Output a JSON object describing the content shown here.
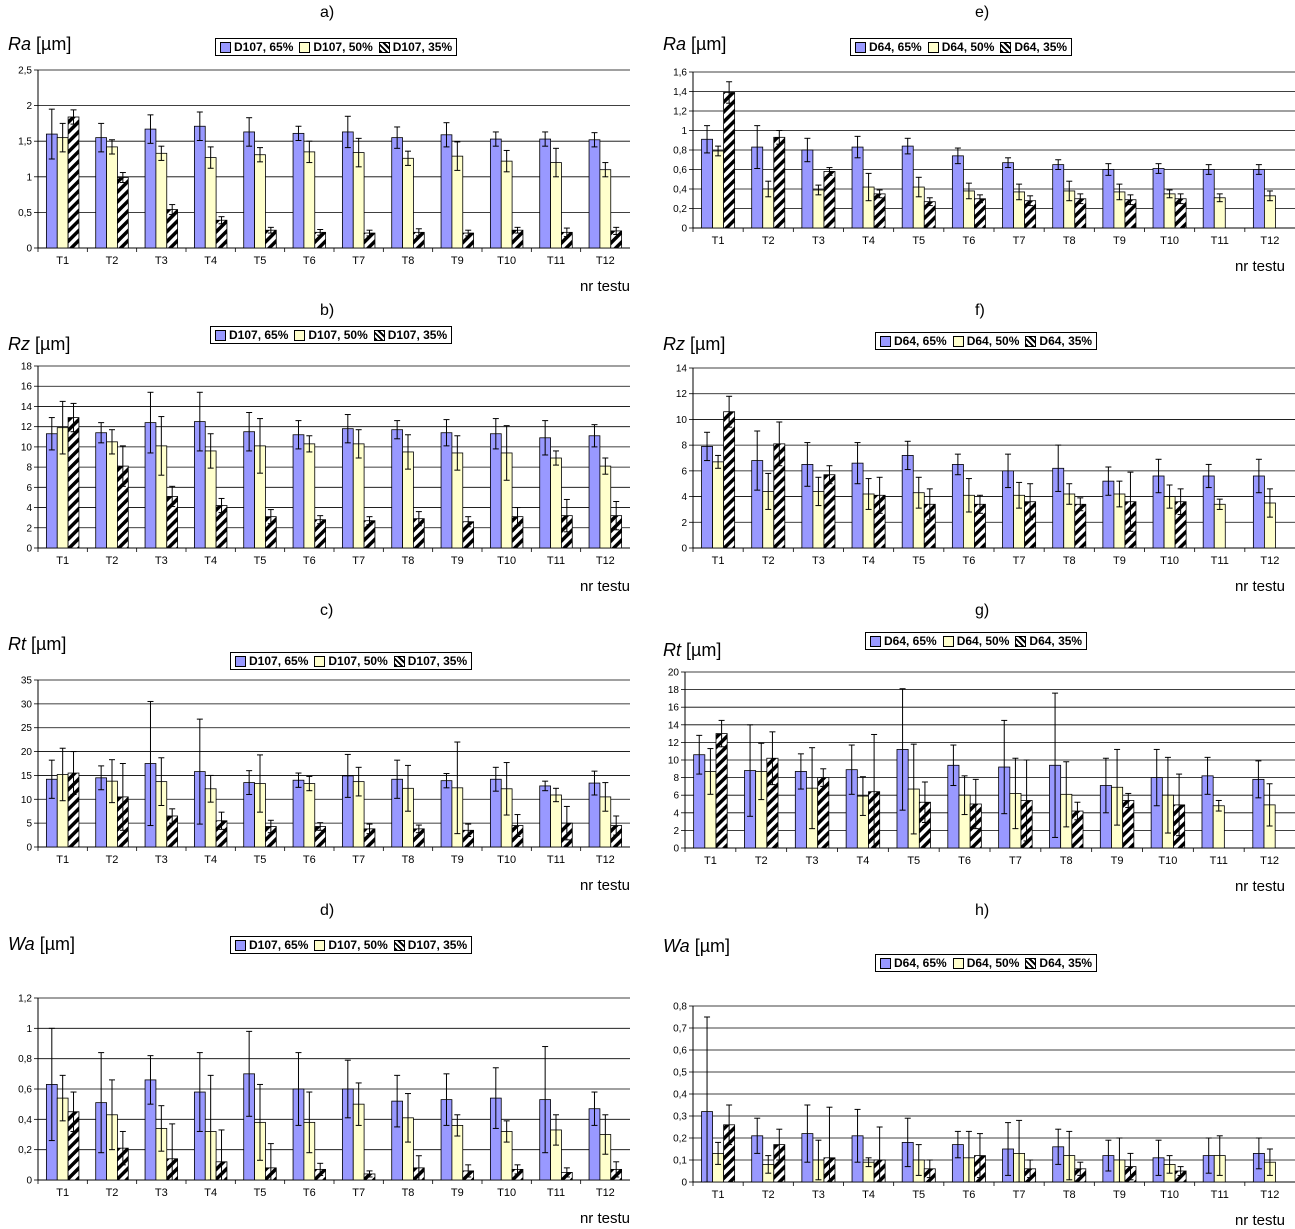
{
  "x_axis_label": "nr testu",
  "categories": [
    "T1",
    "T2",
    "T3",
    "T4",
    "T5",
    "T6",
    "T7",
    "T8",
    "T9",
    "T10",
    "T11",
    "T12"
  ],
  "colors": {
    "s65": "#9999ff",
    "s50": "#ffffcc",
    "s35": "#ffffff",
    "stroke": "#000000"
  },
  "chart_data": [
    {
      "id": "a",
      "type": "bar",
      "title": "a)",
      "ylabel": "Ra",
      "unit": "[µm]",
      "ylim": [
        0,
        2.5
      ],
      "ystep": 0.5,
      "series": [
        {
          "name": "D107, 65%",
          "values": [
            1.6,
            1.55,
            1.67,
            1.71,
            1.63,
            1.61,
            1.63,
            1.55,
            1.59,
            1.53,
            1.53,
            1.52
          ],
          "err": [
            0.35,
            0.2,
            0.2,
            0.2,
            0.2,
            0.1,
            0.22,
            0.15,
            0.17,
            0.1,
            0.1,
            0.1
          ]
        },
        {
          "name": "D107, 50%",
          "values": [
            1.55,
            1.42,
            1.33,
            1.27,
            1.31,
            1.35,
            1.34,
            1.26,
            1.29,
            1.22,
            1.2,
            1.1
          ],
          "err": [
            0.2,
            0.1,
            0.1,
            0.15,
            0.1,
            0.15,
            0.2,
            0.1,
            0.2,
            0.15,
            0.2,
            0.1
          ]
        },
        {
          "name": "D107, 35%",
          "values": [
            1.84,
            0.99,
            0.54,
            0.39,
            0.25,
            0.22,
            0.21,
            0.22,
            0.21,
            0.25,
            0.22,
            0.24
          ],
          "err": [
            0.1,
            0.07,
            0.07,
            0.05,
            0.04,
            0.04,
            0.04,
            0.05,
            0.04,
            0.04,
            0.06,
            0.05
          ]
        }
      ]
    },
    {
      "id": "e",
      "type": "bar",
      "title": "e)",
      "ylabel": "Ra",
      "unit": "[µm]",
      "ylim": [
        0,
        1.6
      ],
      "ystep": 0.2,
      "series": [
        {
          "name": "D64, 65%",
          "values": [
            0.91,
            0.83,
            0.8,
            0.83,
            0.84,
            0.74,
            0.67,
            0.65,
            0.6,
            0.61,
            0.6,
            0.6
          ],
          "err": [
            0.14,
            0.22,
            0.12,
            0.11,
            0.08,
            0.08,
            0.05,
            0.05,
            0.06,
            0.05,
            0.05,
            0.05
          ]
        },
        {
          "name": "D64, 50%",
          "values": [
            0.79,
            0.4,
            0.39,
            0.42,
            0.42,
            0.38,
            0.37,
            0.38,
            0.37,
            0.35,
            0.31,
            0.33
          ],
          "err": [
            0.05,
            0.08,
            0.05,
            0.14,
            0.1,
            0.08,
            0.08,
            0.1,
            0.08,
            0.04,
            0.04,
            0.05
          ]
        },
        {
          "name": "D64, 35%",
          "values": [
            1.39,
            0.93,
            0.58,
            0.35,
            0.27,
            0.3,
            0.28,
            0.3,
            0.29,
            0.3,
            0.0,
            0.0
          ],
          "err": [
            0.11,
            0.07,
            0.04,
            0.04,
            0.04,
            0.04,
            0.05,
            0.05,
            0.05,
            0.05,
            0.0,
            0.0
          ]
        }
      ]
    },
    {
      "id": "b",
      "type": "bar",
      "title": "b)",
      "ylabel": "Rz",
      "unit": "[µm]",
      "ylim": [
        0,
        18
      ],
      "ystep": 2,
      "series": [
        {
          "name": "D107, 65%",
          "values": [
            11.3,
            11.4,
            12.4,
            12.5,
            11.5,
            11.2,
            11.8,
            11.7,
            11.4,
            11.3,
            10.9,
            11.1
          ],
          "err": [
            1.6,
            1.0,
            3.0,
            2.9,
            1.9,
            1.4,
            1.4,
            0.9,
            1.3,
            1.5,
            1.7,
            1.1
          ]
        },
        {
          "name": "D107, 50%",
          "values": [
            11.9,
            10.5,
            10.1,
            9.6,
            10.1,
            10.3,
            10.3,
            9.5,
            9.4,
            9.4,
            8.9,
            8.1
          ],
          "err": [
            2.6,
            1.2,
            2.9,
            1.7,
            2.7,
            0.8,
            1.4,
            1.7,
            1.7,
            2.7,
            0.7,
            0.8
          ]
        },
        {
          "name": "D107, 35%",
          "values": [
            12.9,
            8.1,
            5.1,
            4.2,
            3.1,
            2.8,
            2.7,
            2.9,
            2.6,
            3.1,
            3.2,
            3.2
          ],
          "err": [
            1.4,
            2.0,
            1.0,
            0.7,
            0.7,
            0.4,
            0.4,
            0.7,
            0.5,
            0.9,
            1.6,
            1.4
          ]
        }
      ]
    },
    {
      "id": "f",
      "type": "bar",
      "title": "f)",
      "ylabel": "Rz",
      "unit": "[µm]",
      "ylim": [
        0,
        14
      ],
      "ystep": 2,
      "series": [
        {
          "name": "D64, 65%",
          "values": [
            7.9,
            6.8,
            6.5,
            6.6,
            7.2,
            6.5,
            6.0,
            6.2,
            5.2,
            5.6,
            5.6,
            5.6
          ],
          "err": [
            1.1,
            2.3,
            1.7,
            1.6,
            1.1,
            0.8,
            1.3,
            1.8,
            1.1,
            1.3,
            0.9,
            1.3
          ]
        },
        {
          "name": "D64, 50%",
          "values": [
            6.7,
            4.4,
            4.4,
            4.2,
            4.3,
            4.1,
            4.1,
            4.2,
            4.2,
            4.0,
            3.4,
            3.5
          ],
          "err": [
            0.5,
            1.4,
            1.1,
            1.2,
            1.2,
            1.3,
            1.0,
            0.8,
            1.0,
            0.9,
            0.4,
            1.1
          ]
        },
        {
          "name": "D64, 35%",
          "values": [
            10.6,
            8.1,
            5.7,
            4.1,
            3.4,
            3.4,
            3.6,
            3.4,
            3.6,
            3.6,
            0.0,
            0.0
          ],
          "err": [
            1.2,
            1.7,
            0.7,
            1.4,
            1.2,
            0.7,
            1.4,
            0.5,
            2.3,
            1.0,
            0.0,
            0.0
          ]
        }
      ]
    },
    {
      "id": "c",
      "type": "bar",
      "title": "c)",
      "ylabel": "Rt",
      "unit": "[µm]",
      "ylim": [
        0,
        35
      ],
      "ystep": 5,
      "series": [
        {
          "name": "D107, 65%",
          "values": [
            14.2,
            14.5,
            17.5,
            15.8,
            13.5,
            14.0,
            14.9,
            14.2,
            13.9,
            14.2,
            12.8,
            13.4
          ],
          "err": [
            4.0,
            2.5,
            13.0,
            11.0,
            2.5,
            1.5,
            4.5,
            4.0,
            1.5,
            2.5,
            1.0,
            2.5
          ]
        },
        {
          "name": "D107, 50%",
          "values": [
            15.2,
            13.8,
            13.7,
            12.2,
            13.3,
            13.3,
            13.7,
            12.3,
            12.4,
            12.2,
            10.9,
            10.5
          ],
          "err": [
            5.5,
            4.5,
            5.0,
            2.8,
            6.0,
            1.5,
            3.0,
            4.8,
            9.6,
            5.5,
            1.4,
            3.0
          ]
        },
        {
          "name": "D107, 35%",
          "values": [
            15.5,
            10.5,
            6.5,
            5.5,
            4.3,
            4.3,
            3.8,
            3.8,
            3.5,
            4.5,
            5.0,
            4.5
          ],
          "err": [
            4.5,
            7.0,
            1.5,
            1.8,
            1.3,
            0.8,
            1.0,
            0.8,
            1.3,
            2.3,
            3.5,
            2.0
          ]
        }
      ]
    },
    {
      "id": "g",
      "type": "bar",
      "title": "g)",
      "ylabel": "Rt",
      "unit": "[µm]",
      "ylim": [
        0,
        20
      ],
      "ystep": 2,
      "series": [
        {
          "name": "D64, 65%",
          "values": [
            10.6,
            8.8,
            8.7,
            8.9,
            11.2,
            9.4,
            9.2,
            9.4,
            7.1,
            8.0,
            8.2,
            7.8
          ],
          "err": [
            2.2,
            5.2,
            2.0,
            2.8,
            6.9,
            2.3,
            5.3,
            8.2,
            3.1,
            3.2,
            2.1,
            2.1
          ]
        },
        {
          "name": "D64, 50%",
          "values": [
            8.7,
            8.7,
            6.8,
            5.9,
            6.7,
            6.0,
            6.2,
            6.1,
            6.9,
            6.0,
            4.8,
            4.9
          ],
          "err": [
            2.6,
            3.2,
            4.6,
            2.2,
            5.1,
            2.2,
            4.0,
            3.7,
            4.3,
            4.3,
            0.6,
            2.4
          ]
        },
        {
          "name": "D64, 35%",
          "values": [
            13.0,
            10.2,
            8.0,
            6.4,
            5.2,
            5.0,
            5.4,
            4.2,
            5.4,
            4.9,
            0.0,
            0.0
          ],
          "err": [
            1.5,
            3.0,
            1.0,
            6.5,
            2.3,
            2.8,
            4.6,
            1.0,
            0.8,
            3.5,
            0.0,
            0.0
          ]
        }
      ]
    },
    {
      "id": "d",
      "type": "bar",
      "title": "d)",
      "ylabel": "Wa",
      "unit": "[µm]",
      "ylim": [
        0,
        1.2
      ],
      "ystep": 0.2,
      "series": [
        {
          "name": "D107, 65%",
          "values": [
            0.63,
            0.51,
            0.66,
            0.58,
            0.7,
            0.6,
            0.6,
            0.52,
            0.53,
            0.54,
            0.53,
            0.47
          ],
          "err": [
            0.37,
            0.33,
            0.16,
            0.26,
            0.28,
            0.24,
            0.19,
            0.17,
            0.17,
            0.2,
            0.35,
            0.11
          ]
        },
        {
          "name": "D107, 50%",
          "values": [
            0.54,
            0.43,
            0.34,
            0.32,
            0.38,
            0.38,
            0.5,
            0.41,
            0.36,
            0.32,
            0.33,
            0.3
          ],
          "err": [
            0.15,
            0.23,
            0.15,
            0.37,
            0.25,
            0.2,
            0.14,
            0.16,
            0.07,
            0.07,
            0.1,
            0.13
          ]
        },
        {
          "name": "D107, 35%",
          "values": [
            0.45,
            0.21,
            0.14,
            0.12,
            0.08,
            0.07,
            0.04,
            0.08,
            0.06,
            0.07,
            0.05,
            0.07
          ],
          "err": [
            0.13,
            0.11,
            0.23,
            0.21,
            0.16,
            0.04,
            0.02,
            0.08,
            0.04,
            0.03,
            0.03,
            0.05
          ]
        }
      ]
    },
    {
      "id": "h",
      "type": "bar",
      "title": "h)",
      "ylabel": "Wa",
      "unit": "[µm]",
      "ylim": [
        0,
        0.8
      ],
      "ystep": 0.1,
      "series": [
        {
          "name": "D64, 65%",
          "values": [
            0.32,
            0.21,
            0.22,
            0.21,
            0.18,
            0.17,
            0.15,
            0.16,
            0.12,
            0.11,
            0.12,
            0.13
          ],
          "err": [
            0.43,
            0.08,
            0.13,
            0.12,
            0.11,
            0.06,
            0.12,
            0.08,
            0.07,
            0.08,
            0.08,
            0.07
          ]
        },
        {
          "name": "D64, 50%",
          "values": [
            0.13,
            0.08,
            0.1,
            0.09,
            0.1,
            0.11,
            0.13,
            0.12,
            0.1,
            0.08,
            0.12,
            0.09
          ],
          "err": [
            0.05,
            0.04,
            0.09,
            0.02,
            0.07,
            0.12,
            0.15,
            0.11,
            0.1,
            0.04,
            0.09,
            0.06
          ]
        },
        {
          "name": "D64, 35%",
          "values": [
            0.26,
            0.17,
            0.11,
            0.1,
            0.06,
            0.12,
            0.06,
            0.06,
            0.07,
            0.05,
            0.0,
            0.0
          ],
          "err": [
            0.09,
            0.07,
            0.23,
            0.15,
            0.04,
            0.1,
            0.04,
            0.03,
            0.06,
            0.02,
            0.0,
            0.0
          ]
        }
      ]
    }
  ]
}
